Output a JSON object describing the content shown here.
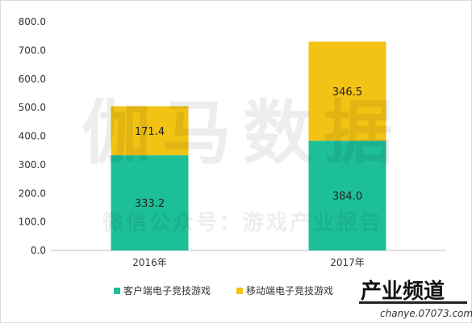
{
  "chart_data": {
    "type": "bar",
    "stacked": true,
    "categories": [
      "2016年",
      "2017年"
    ],
    "series": [
      {
        "name": "客户端电子竞技游戏",
        "color": "#1dbf98",
        "values": [
          333.2,
          384.0
        ],
        "labels": [
          "333.2",
          "384.0"
        ]
      },
      {
        "name": "移动端电子竞技游戏",
        "color": "#f2c214",
        "values": [
          171.4,
          346.5
        ],
        "labels": [
          "171.4",
          "346.5"
        ]
      }
    ],
    "ylim": [
      0,
      800
    ],
    "yticks": [
      "0.0",
      "100.0",
      "200.0",
      "300.0",
      "400.0",
      "500.0",
      "600.0",
      "700.0",
      "800.0"
    ],
    "grid": false,
    "legend_position": "bottom"
  },
  "watermark": {
    "main": "伽马数据",
    "sub": "微信公众号：游戏产业报告"
  },
  "logo": {
    "text": "产业频道",
    "url": "chanye.07073.com"
  }
}
